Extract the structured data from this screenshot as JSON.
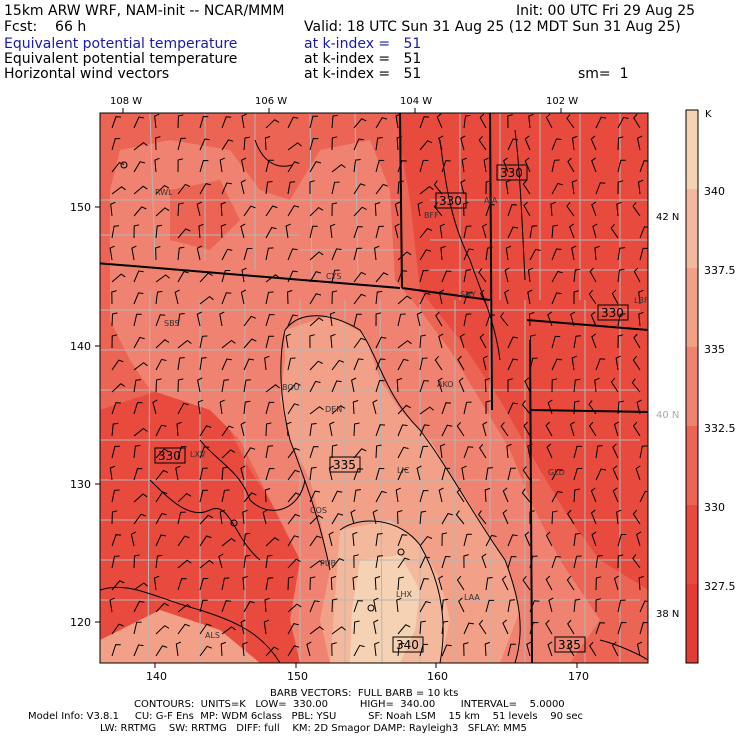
{
  "header": {
    "model_line": "15km ARW WRF, NAM-init -- NCAR/MMM",
    "init_line": "Init: 00 UTC Fri 29 Aug 25",
    "fcst_line": "Fcst:    66 h",
    "valid_line": "Valid: 18 UTC Sun 31 Aug 25 (12 MDT Sun 31 Aug 25)",
    "fields": [
      {
        "name": "Equivalent potential temperature",
        "level": "at k-index =   51",
        "color": "#1a1aa8"
      },
      {
        "name": "Equivalent potential temperature",
        "level": "at k-index =   51",
        "color": "#000000"
      },
      {
        "name": "Horizontal wind vectors",
        "level": "at k-index =   51",
        "color": "#000000"
      }
    ],
    "smoothing": "sm=  1"
  },
  "map": {
    "top_lon_labels": [
      "108 W",
      "106 W",
      "104 W",
      "102 W"
    ],
    "right_lat_labels": [
      "42 N",
      "40 N",
      "38 N"
    ],
    "left_y_ticks": [
      "150",
      "140",
      "130",
      "120"
    ],
    "bottom_x_ticks": [
      "140",
      "150",
      "160",
      "170"
    ],
    "stations": [
      "RWL",
      "CYS",
      "BFF",
      "AIA",
      "SNY",
      "SBS",
      "BOU",
      "DEN",
      "AKO",
      "LBF",
      "LIC",
      "GLD",
      "COS",
      "PUB",
      "LHX",
      "LAA",
      "ALS",
      "LXV"
    ],
    "contour_labels": [
      "330",
      "330",
      "330",
      "330",
      "335",
      "340",
      "335"
    ]
  },
  "colorbar": {
    "unit": "K",
    "labels": [
      "340",
      "337.5",
      "335",
      "332.5",
      "330",
      "327.5"
    ],
    "colors": [
      "#f6d2b4",
      "#f4b99d",
      "#f2a087",
      "#ef8270",
      "#ec6454",
      "#e84a3e",
      "#e33d33"
    ]
  },
  "footer": {
    "barb_line": "BARB VECTORS:  FULL BARB = 10 kts",
    "contours_line": "CONTOURS:  UNITS=K   LOW=  330.00          HIGH=  340.00        INTERVAL=    5.0000",
    "model_info_line": "Model Info: V3.8.1     CU: G-F Ens  MP: WDM 6class   PBL: YSU          SF: Noah LSM    15 km    51 levels    90 sec",
    "physics_line": "LW: RRTMG    SW: RRTMG   DIFF: full    KM: 2D Smagor DAMP: Rayleigh3   SFLAY: MM5"
  }
}
